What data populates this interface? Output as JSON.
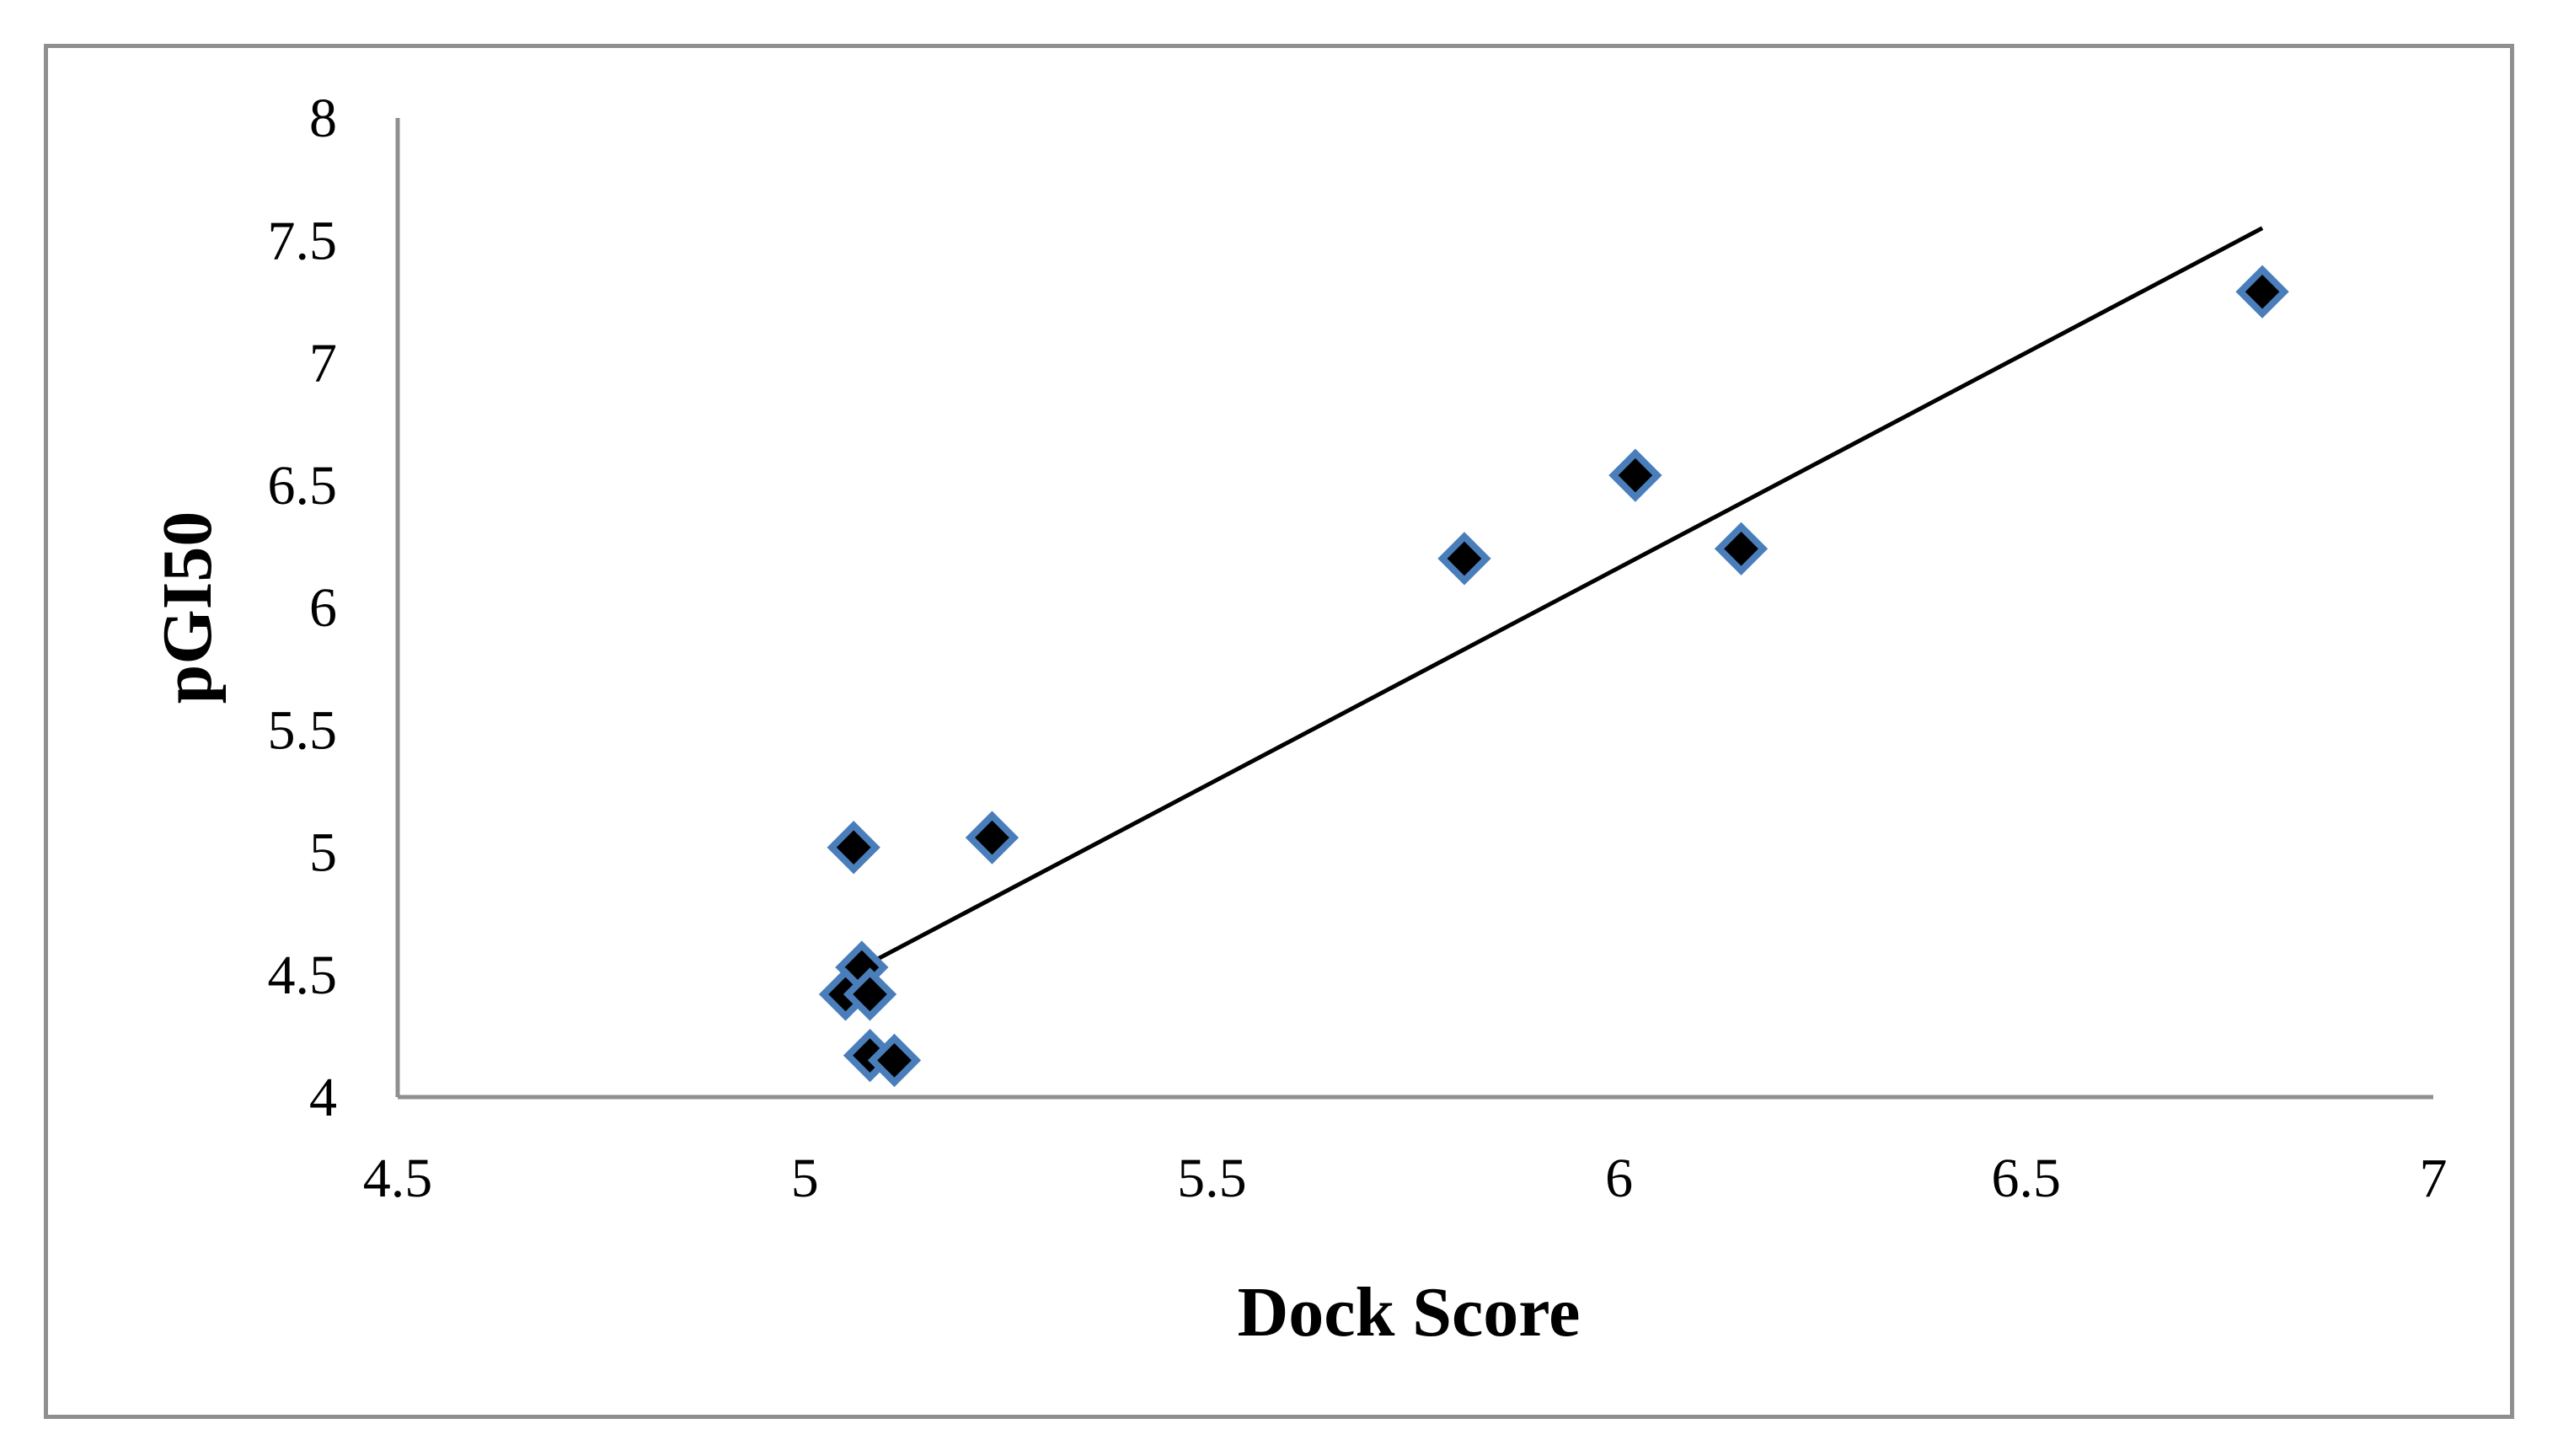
{
  "chart_data": {
    "type": "scatter",
    "title": "",
    "xlabel": "Dock Score",
    "ylabel": "pGI50",
    "xlim": [
      4.5,
      7
    ],
    "ylim": [
      4,
      8
    ],
    "x_ticks": [
      "4.5",
      "5",
      "5.5",
      "6",
      "6.5",
      "7"
    ],
    "y_ticks": [
      "4",
      "4.5",
      "5",
      "5.5",
      "6",
      "6.5",
      "7",
      "7.5",
      "8"
    ],
    "grid": false,
    "legend": "none",
    "series": [
      {
        "marker": "diamond",
        "marker_fill": "#000000",
        "marker_edge": "#4a7ebb",
        "points": [
          {
            "x": 5.06,
            "y": 5.02
          },
          {
            "x": 5.23,
            "y": 5.06
          },
          {
            "x": 5.07,
            "y": 4.53
          },
          {
            "x": 5.05,
            "y": 4.42
          },
          {
            "x": 5.08,
            "y": 4.42
          },
          {
            "x": 5.08,
            "y": 4.17
          },
          {
            "x": 5.11,
            "y": 4.15
          },
          {
            "x": 5.81,
            "y": 6.2
          },
          {
            "x": 6.02,
            "y": 6.54
          },
          {
            "x": 6.15,
            "y": 6.24
          },
          {
            "x": 6.79,
            "y": 7.29
          }
        ]
      }
    ],
    "trendline": {
      "type": "linear",
      "color": "#000000",
      "from": {
        "x": 5.07,
        "y": 4.53
      },
      "to": {
        "x": 6.79,
        "y": 7.55
      }
    }
  }
}
